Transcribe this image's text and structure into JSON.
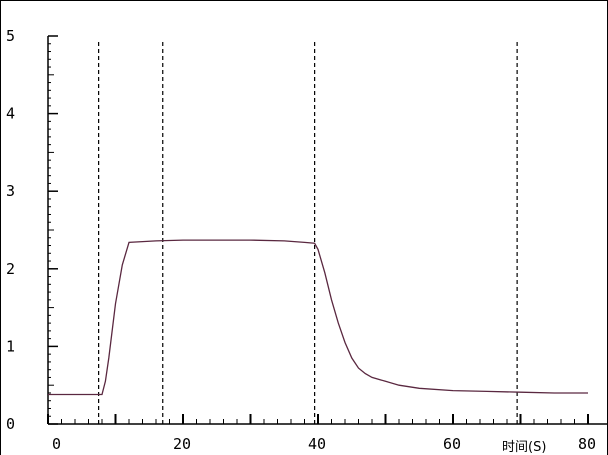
{
  "chart_data": {
    "type": "line",
    "title": "",
    "xlabel": "时间(S)",
    "ylabel": "",
    "xlim": [
      0,
      80
    ],
    "ylim": [
      0,
      5
    ],
    "x_ticks": [
      "0",
      "20",
      "40",
      "60",
      "80"
    ],
    "y_ticks": [
      "0",
      "1",
      "2",
      "3",
      "4",
      "5"
    ],
    "vlines": [
      7.5,
      17,
      39.5,
      69.5
    ],
    "grid": false,
    "line_color": "#5a2840",
    "series": [
      {
        "x": [
          0,
          8,
          8.5,
          9,
          10,
          11,
          12,
          14,
          16,
          20,
          25,
          30,
          35,
          38,
          39.5,
          40,
          41,
          42,
          43,
          44,
          45,
          46,
          47,
          48,
          50,
          52,
          55,
          60,
          65,
          70,
          75,
          80
        ],
        "y": [
          0.38,
          0.38,
          0.55,
          0.85,
          1.55,
          2.05,
          2.34,
          2.35,
          2.36,
          2.37,
          2.37,
          2.37,
          2.36,
          2.34,
          2.33,
          2.25,
          1.95,
          1.6,
          1.3,
          1.05,
          0.85,
          0.72,
          0.65,
          0.6,
          0.55,
          0.5,
          0.46,
          0.43,
          0.42,
          0.41,
          0.4,
          0.4
        ]
      }
    ]
  }
}
